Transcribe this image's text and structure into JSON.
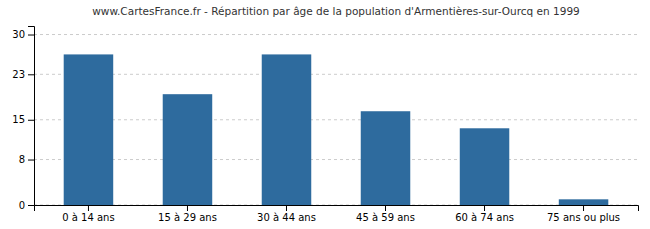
{
  "chart_data": {
    "type": "bar",
    "title": "www.CartesFrance.fr - Répartition par âge de la population d'Armentières-sur-Ourcq en 1999",
    "categories": [
      "0 à 14 ans",
      "15 à 29 ans",
      "30 à 44 ans",
      "45 à 59 ans",
      "60 à 74 ans",
      "75 ans ou plus"
    ],
    "values": [
      26.5,
      19.5,
      26.5,
      16.5,
      13.5,
      1.0
    ],
    "color": "#2e6b9e",
    "ylim": [
      0,
      31.5
    ],
    "yticks": [
      0,
      8,
      15,
      23,
      30
    ],
    "grid": true
  }
}
